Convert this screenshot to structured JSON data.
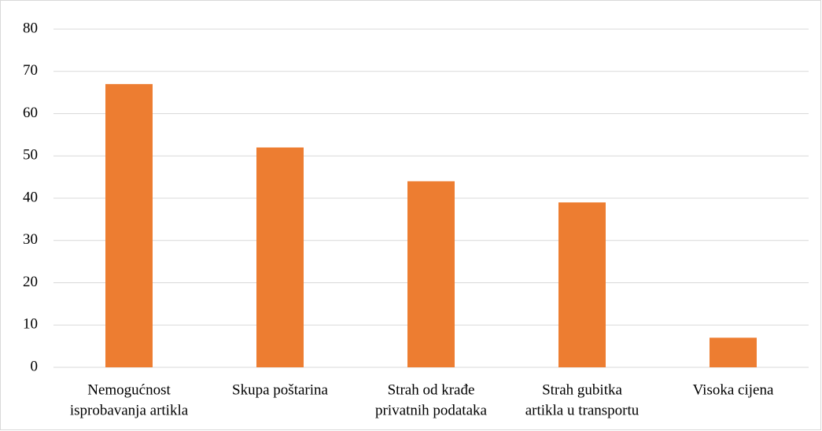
{
  "chart_data": {
    "type": "bar",
    "categories": [
      [
        "Nemogućnost",
        "isprobavanja artikla"
      ],
      [
        "Skupa poštarina"
      ],
      [
        "Strah od krađe",
        "privatnih podataka"
      ],
      [
        "Strah gubitka",
        "artikla u transportu"
      ],
      [
        "Visoka cijena"
      ]
    ],
    "values": [
      67,
      52,
      44,
      39,
      7
    ],
    "color": "#ed7d31",
    "ylim": [
      0,
      80
    ],
    "yticks": [
      0,
      10,
      20,
      30,
      40,
      50,
      60,
      70,
      80
    ],
    "grid": true
  }
}
